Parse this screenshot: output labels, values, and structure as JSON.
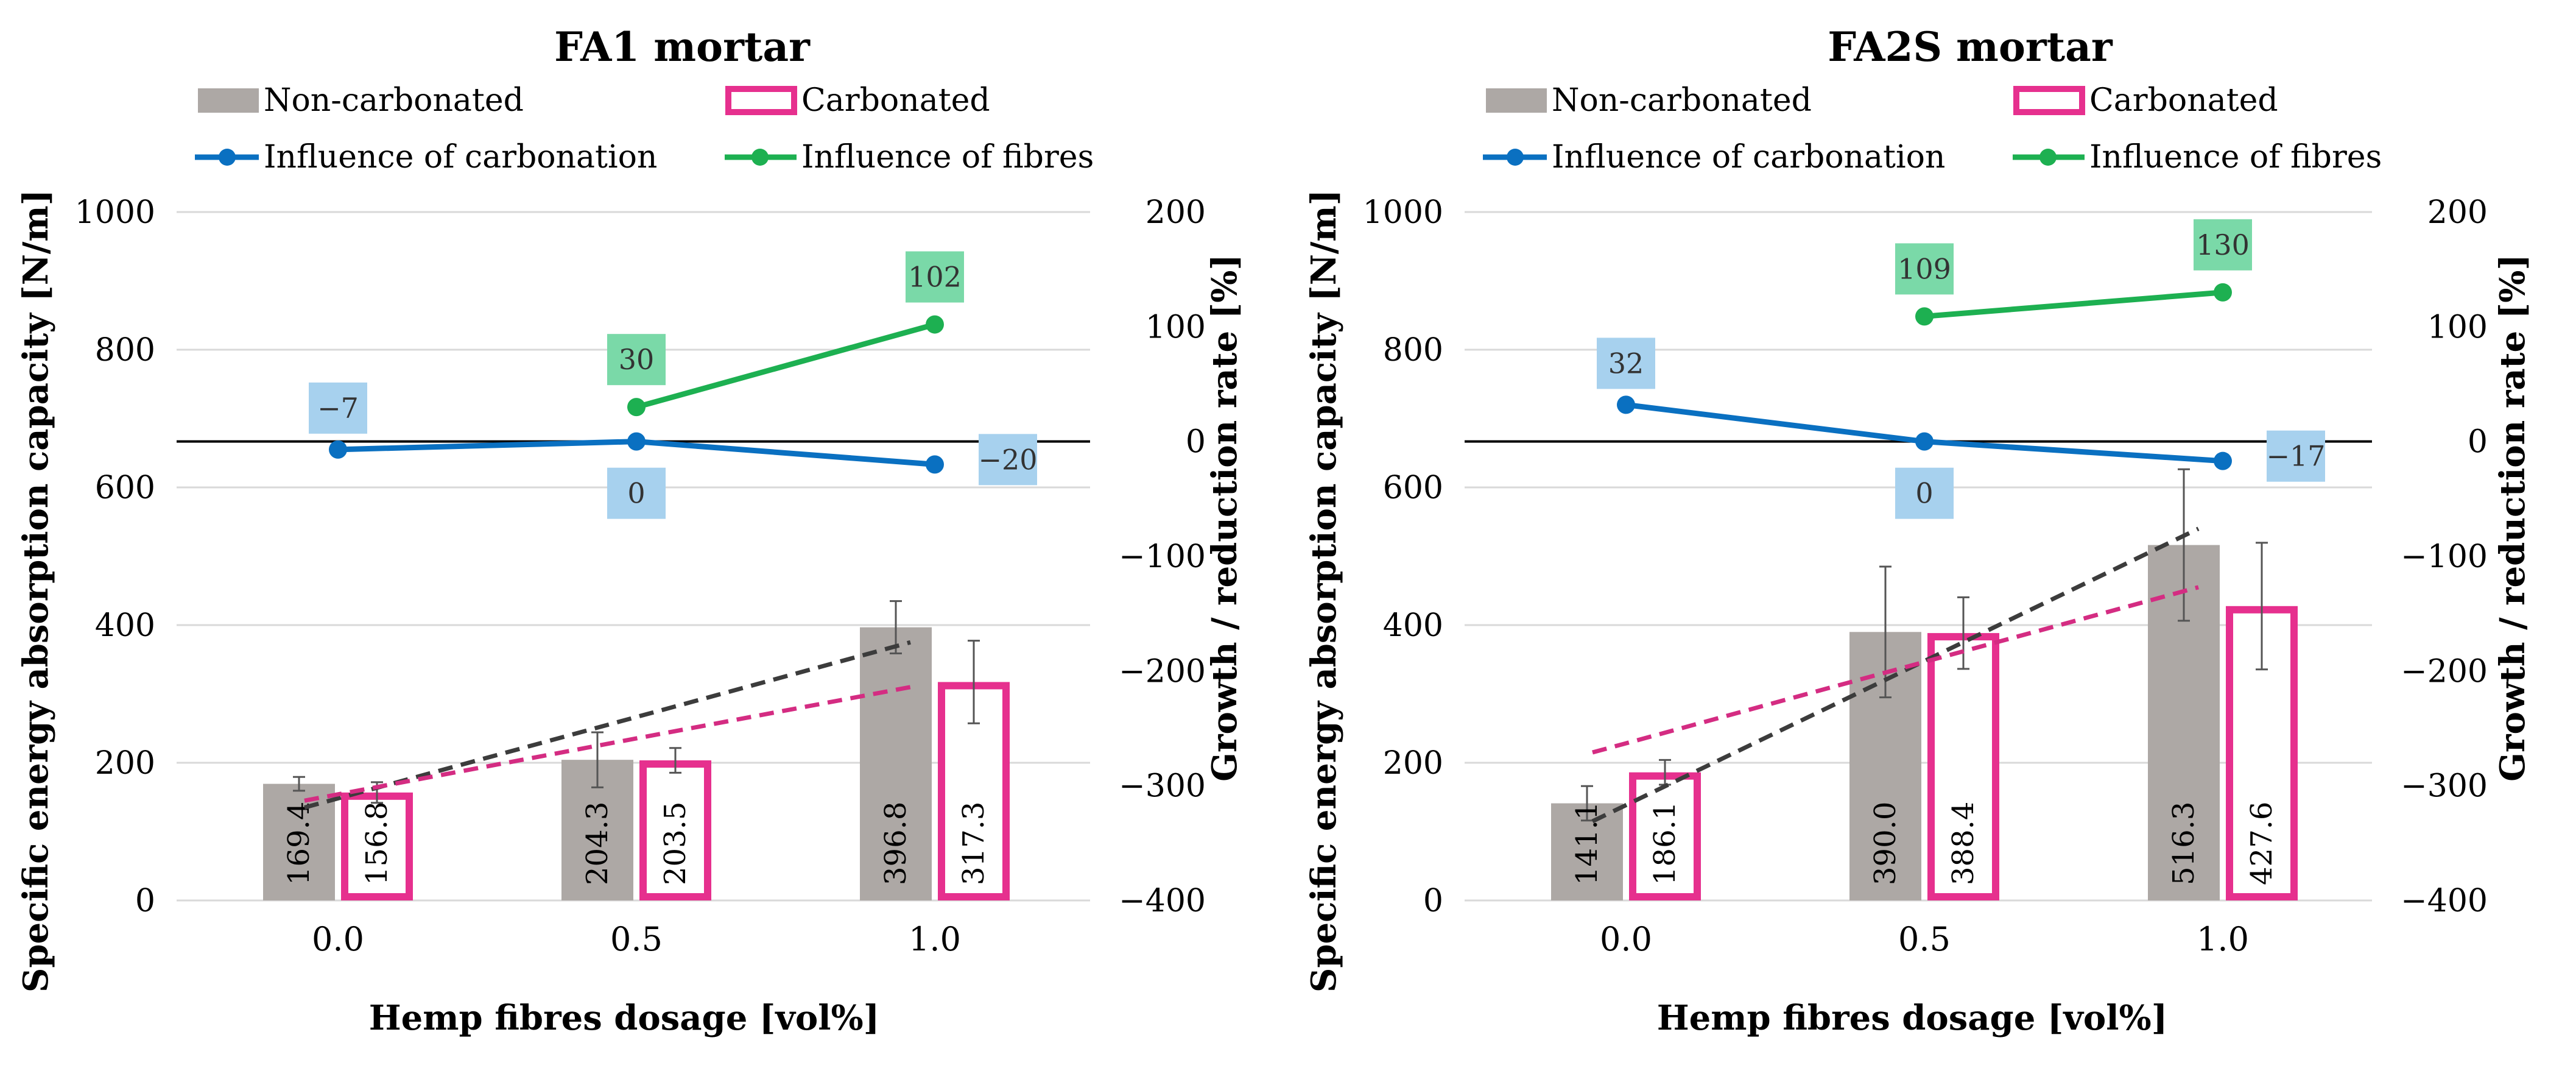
{
  "colors": {
    "noncarb_fill": "#ADA8A5",
    "carb_stroke": "#E6308E",
    "carbonation_line": "#0A70C1",
    "fibres_line": "#1DB051",
    "carbonation_label_bg": "#A7D1EE",
    "fibres_label_bg": "#7AD9A8",
    "trend_noncarb": "#3C3C3C",
    "trend_carb": "#D42C82",
    "grid": "#D9D9D9",
    "zero_line": "#000000"
  },
  "chart_data": [
    {
      "type": "bar",
      "title": "FA1 mortar",
      "xlabel": "Hemp fibres dosage [vol%]",
      "ylabel": "Specific energy absorption capacity [N/m]",
      "y2label": "Growth / reduction rate [%]",
      "categories": [
        "0.0",
        "0.5",
        "1.0"
      ],
      "ylim": [
        0,
        1000
      ],
      "yticks": [
        "0",
        "200",
        "400",
        "600",
        "800",
        "1000"
      ],
      "y2lim": [
        -400,
        200
      ],
      "y2ticks": [
        "−400",
        "−300",
        "−200",
        "−100",
        "0",
        "100",
        "200"
      ],
      "legend": {
        "noncarb": "Non-carbonated",
        "carb": "Carbonated",
        "carbonation": "Influence of carbonation",
        "fibres": "Influence of fibres"
      },
      "series": [
        {
          "name": "Non-carbonated",
          "values": [
            169.4,
            204.3,
            396.8
          ],
          "labels": [
            "169.4",
            "204.3",
            "396.8"
          ],
          "err": [
            10,
            40,
            38
          ]
        },
        {
          "name": "Carbonated",
          "values": [
            156.8,
            203.5,
            317.3
          ],
          "labels": [
            "156.8",
            "203.5",
            "317.3"
          ],
          "err": [
            15,
            18,
            60
          ]
        }
      ],
      "lines": [
        {
          "name": "Influence of carbonation",
          "values": [
            -7,
            0,
            -20
          ],
          "labels": [
            "−7",
            "0",
            "−20"
          ]
        },
        {
          "name": "Influence of fibres",
          "values": [
            null,
            30,
            102
          ],
          "labels": [
            "",
            "30",
            "102"
          ]
        }
      ],
      "trend": {
        "noncarb": [
          135,
          375
        ],
        "carb": [
          145,
          310
        ]
      }
    },
    {
      "type": "bar",
      "title": "FA2S mortar",
      "xlabel": "Hemp fibres dosage [vol%]",
      "ylabel": "Specific energy absorption capacity [N/m]",
      "y2label": "Growth / reduction rate [%]",
      "categories": [
        "0.0",
        "0.5",
        "1.0"
      ],
      "ylim": [
        0,
        1000
      ],
      "yticks": [
        "0",
        "200",
        "400",
        "600",
        "800",
        "1000"
      ],
      "y2lim": [
        -400,
        200
      ],
      "y2ticks": [
        "−400",
        "−300",
        "−200",
        "−100",
        "0",
        "100",
        "200"
      ],
      "legend": {
        "noncarb": "Non-carbonated",
        "carb": "Carbonated",
        "carbonation": "Influence of carbonation",
        "fibres": "Influence of fibres"
      },
      "series": [
        {
          "name": "Non-carbonated",
          "values": [
            141.1,
            390.0,
            516.3
          ],
          "labels": [
            "141.1",
            "390.0",
            "516.3"
          ],
          "err": [
            25,
            95,
            110
          ]
        },
        {
          "name": "Carbonated",
          "values": [
            186.1,
            388.4,
            427.6
          ],
          "labels": [
            "186.1",
            "388.4",
            "427.6"
          ],
          "err": [
            18,
            52,
            92
          ]
        }
      ],
      "lines": [
        {
          "name": "Influence of carbonation",
          "values": [
            32,
            0,
            -17
          ],
          "labels": [
            "32",
            "0",
            "−17"
          ]
        },
        {
          "name": "Influence of fibres",
          "values": [
            null,
            109,
            130
          ],
          "labels": [
            "",
            "109",
            "130"
          ]
        }
      ],
      "trend": {
        "noncarb": [
          115,
          540
        ],
        "carb": [
          215,
          455
        ]
      }
    }
  ]
}
